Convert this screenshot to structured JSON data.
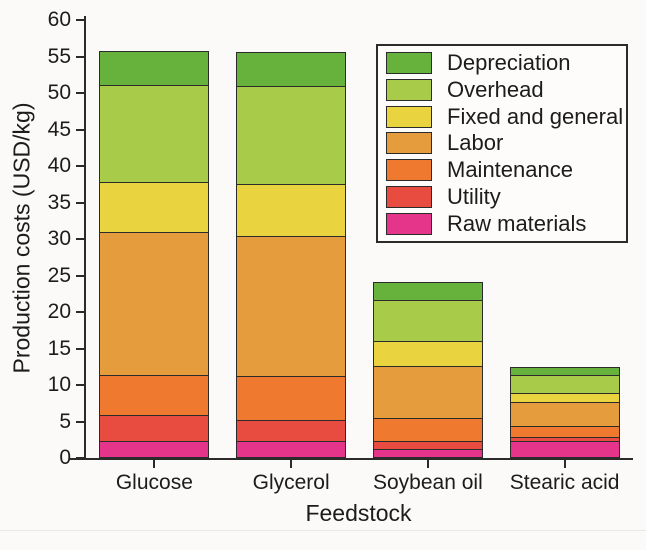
{
  "page": {
    "background": "#fcfaf8"
  },
  "axes": {
    "y_title": "Production costs (USD/kg)",
    "x_title": "Feedstock"
  },
  "chart_data": {
    "type": "bar",
    "stacked": true,
    "title": "",
    "xlabel": "Feedstock",
    "ylabel": "Production costs (USD/kg)",
    "ylim": [
      0,
      60
    ],
    "ytick_step": 5,
    "grid": false,
    "legend_position": "top-right",
    "legend_order_top_to_bottom": [
      "Depreciation",
      "Overhead",
      "Fixed and general",
      "Labor",
      "Maintenance",
      "Utility",
      "Raw materials"
    ],
    "categories": [
      "Glucose",
      "Glycerol",
      "Soybean oil",
      "Stearic acid"
    ],
    "series": [
      {
        "name": "Raw materials",
        "color": "#e5358b",
        "values": [
          2.1,
          2.1,
          1.0,
          2.2
        ]
      },
      {
        "name": "Utility",
        "color": "#e84c40",
        "values": [
          3.5,
          2.8,
          1.0,
          0.5
        ]
      },
      {
        "name": "Maintenance",
        "color": "#ef7a2f",
        "values": [
          5.4,
          5.9,
          3.1,
          1.4
        ]
      },
      {
        "name": "Labor",
        "color": "#e49c3d",
        "values": [
          19.7,
          19.4,
          7.3,
          3.4
        ]
      },
      {
        "name": "Fixed and general",
        "color": "#e9d33f",
        "values": [
          6.9,
          7.1,
          3.4,
          1.1
        ]
      },
      {
        "name": "Overhead",
        "color": "#a9cb4a",
        "values": [
          13.3,
          13.4,
          5.6,
          2.6
        ]
      },
      {
        "name": "Depreciation",
        "color": "#67b23d",
        "values": [
          4.6,
          4.7,
          2.5,
          1.0
        ]
      }
    ],
    "totals": [
      55.5,
      55.4,
      23.9,
      12.2
    ],
    "colors": {
      "axis": "#2b2b2b",
      "segment_border": "#2b2b2b",
      "text": "#1c1c1c"
    }
  }
}
